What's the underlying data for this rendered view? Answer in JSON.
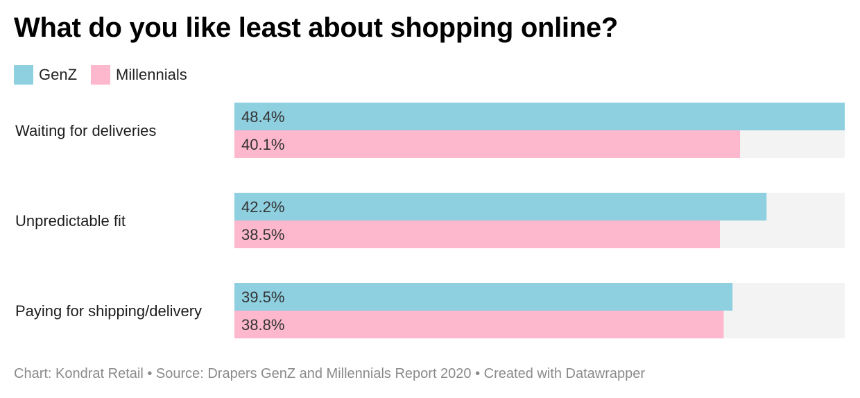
{
  "title": "What do you like least about shopping online?",
  "legend": [
    {
      "name": "GenZ",
      "color": "#8ecfe0"
    },
    {
      "name": "Millennials",
      "color": "#fdb8cd"
    }
  ],
  "chart_data": {
    "type": "bar",
    "orientation": "horizontal",
    "categories": [
      "Waiting for deliveries",
      "Unpredictable fit",
      "Paying for shipping/delivery"
    ],
    "series": [
      {
        "name": "GenZ",
        "values": [
          48.4,
          42.2,
          39.5
        ],
        "labels": [
          "48.4%",
          "42.2%",
          "39.5%"
        ],
        "color": "#8ecfe0"
      },
      {
        "name": "Millennials",
        "values": [
          40.1,
          38.5,
          38.8
        ],
        "labels": [
          "40.1%",
          "38.5%",
          "38.8%"
        ],
        "color": "#fdb8cd"
      }
    ],
    "xlim": [
      0,
      48.4
    ],
    "background_track_color": "#f3f3f3",
    "grid": false,
    "legend_position": "top-left"
  },
  "footer": "Chart: Kondrat Retail • Source: Drapers GenZ and Millennials Report 2020 • Created with Datawrapper"
}
